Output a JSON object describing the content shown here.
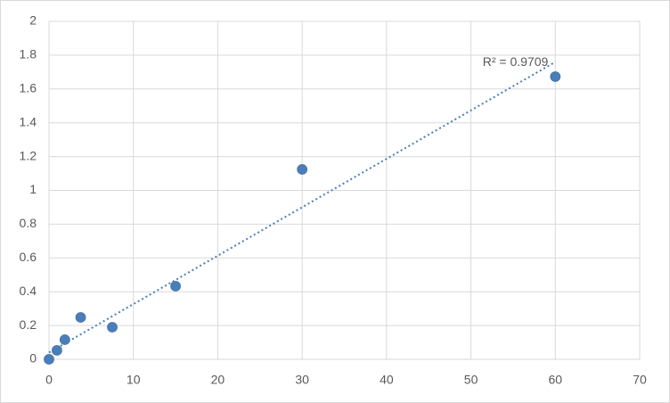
{
  "chart_data": {
    "type": "scatter",
    "series": [
      {
        "color": "#4a7ebb",
        "x": [
          0,
          0.94,
          1.88,
          3.75,
          7.5,
          15,
          30,
          60
        ],
        "values": [
          0,
          0.053,
          0.116,
          0.248,
          0.19,
          0.433,
          1.124,
          1.673
        ]
      }
    ],
    "trendline": {
      "x": [
        0,
        60
      ],
      "values": [
        0.04,
        1.76
      ],
      "color": "#4a7ebb"
    },
    "annotation": "R² = 0.9709",
    "xlim": [
      0,
      70
    ],
    "xticks": [
      0,
      10,
      20,
      30,
      40,
      50,
      60,
      70
    ],
    "ylim": [
      0,
      2
    ],
    "yticks": [
      0,
      0.2,
      0.4,
      0.6,
      0.8,
      1,
      1.2,
      1.4,
      1.6,
      1.8,
      2
    ],
    "grid": true
  }
}
